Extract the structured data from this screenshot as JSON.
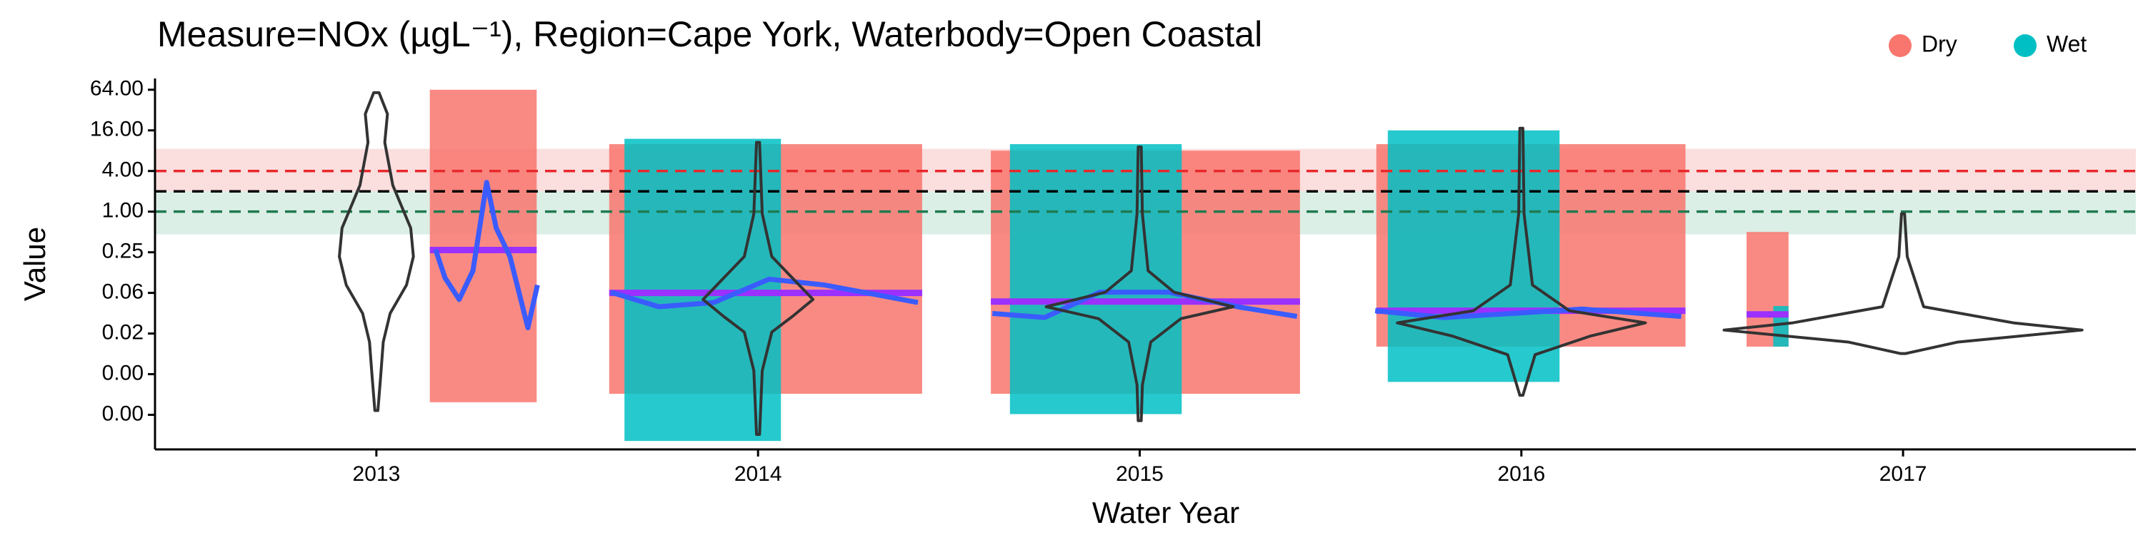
{
  "chart_data": {
    "type": "violin",
    "title": "Measure=NOx (µgL⁻¹), Region=Cape York, Waterbody=Open Coastal",
    "x_label": "Water Year",
    "y_label": "Value",
    "log_scale": true,
    "legend": "top-right",
    "xlim": [
      2012.42,
      2017.61
    ],
    "xticks": [
      2013,
      2014,
      2015,
      2016,
      2017
    ],
    "ylim": [
      0.0003,
      94
    ],
    "yticks": [
      {
        "value": 64,
        "label": "64.00"
      },
      {
        "value": 16,
        "label": "16.00"
      },
      {
        "value": 4,
        "label": "4.00"
      },
      {
        "value": 1,
        "label": "1.00"
      },
      {
        "value": 0.25,
        "label": "0.25"
      },
      {
        "value": 0.0625,
        "label": "0.06"
      },
      {
        "value": 0.015625,
        "label": "0.02"
      },
      {
        "value": 0.00390625,
        "label": "0.00"
      },
      {
        "value": 0.0009765625,
        "label": "0.00"
      }
    ],
    "bands": [
      {
        "low": 2,
        "high": 8.5,
        "color": "#f9d3d3"
      },
      {
        "low": 0.46,
        "high": 2,
        "color": "#cfe9dd"
      }
    ],
    "reference_lines": [
      {
        "value": 4,
        "color": "#e8282b"
      },
      {
        "value": 2,
        "color": "#000000"
      },
      {
        "value": 1,
        "color": "#1f7a4f"
      }
    ],
    "series": [
      {
        "name": "Dry",
        "color": "#f8766d",
        "clouds": [
          {
            "x": [
              2013.14,
              2013.42
            ],
            "low": 0.0015,
            "high": 64
          },
          {
            "x": [
              2013.61,
              2014.43
            ],
            "low": 0.002,
            "high": 10
          },
          {
            "x": [
              2014.61,
              2015.42
            ],
            "low": 0.002,
            "high": 8
          },
          {
            "x": [
              2015.62,
              2016.43
            ],
            "low": 0.01,
            "high": 10
          },
          {
            "x": [
              2016.59,
              2016.7
            ],
            "low": 0.01,
            "high": 0.5
          }
        ]
      },
      {
        "name": "Wet",
        "color": "#00bfc4",
        "clouds": [
          {
            "x": [
              2013.65,
              2014.06
            ],
            "low": 0.0004,
            "high": 12
          },
          {
            "x": [
              2014.66,
              2015.11
            ],
            "low": 0.001,
            "high": 10
          },
          {
            "x": [
              2015.65,
              2016.1
            ],
            "low": 0.003,
            "high": 16
          },
          {
            "x": [
              2016.66,
              2016.7
            ],
            "low": 0.01,
            "high": 0.04
          }
        ]
      }
    ],
    "means": {
      "color": "#9b30ff",
      "segments": [
        {
          "x": [
            2013.14,
            2013.42
          ],
          "value": 0.27
        },
        {
          "x": [
            2013.61,
            2014.43
          ],
          "value": 0.0625
        },
        {
          "x": [
            2014.61,
            2015.42
          ],
          "value": 0.0465
        },
        {
          "x": [
            2015.62,
            2016.43
          ],
          "value": 0.034
        },
        {
          "x": [
            2016.59,
            2016.7
          ],
          "value": 0.03
        }
      ]
    },
    "trends": {
      "color": "#3a5cff",
      "lines": [
        {
          "x": [
            2013.155,
            2013.18,
            2013.217,
            2013.253,
            2013.289,
            2013.314,
            2013.35,
            2013.397,
            2013.422
          ],
          "values": [
            0.275,
            0.104,
            0.05,
            0.133,
            2.71,
            0.57,
            0.216,
            0.019,
            0.082
          ]
        },
        {
          "x": [
            2013.614,
            2013.74,
            2013.884,
            2014.029,
            2014.173,
            2014.419
          ],
          "values": [
            0.064,
            0.039,
            0.045,
            0.1,
            0.082,
            0.045
          ]
        },
        {
          "x": [
            2014.614,
            2014.751,
            2014.895,
            2015.076,
            2015.256,
            2015.412
          ],
          "values": [
            0.031,
            0.027,
            0.064,
            0.064,
            0.039,
            0.028
          ]
        },
        {
          "x": [
            2015.617,
            2015.798,
            2015.978,
            2016.159,
            2016.419
          ],
          "values": [
            0.034,
            0.027,
            0.031,
            0.036,
            0.028
          ]
        }
      ]
    },
    "violins": [
      {
        "x": 2013,
        "values": [
          58,
          28,
          10.6,
          2.46,
          0.57,
          0.216,
          0.082,
          0.031,
          0.0117,
          0.0035,
          0.00113
        ],
        "density": [
          0.007,
          0.029,
          0.022,
          0.043,
          0.09,
          0.097,
          0.079,
          0.036,
          0.018,
          0.011,
          0.004
        ]
      },
      {
        "x": 2014,
        "values": [
          10.6,
          0.93,
          0.216,
          0.104,
          0.05,
          0.028,
          0.0164,
          0.0044,
          0.0005
        ],
        "density": [
          0.004,
          0.011,
          0.036,
          0.09,
          0.144,
          0.09,
          0.036,
          0.011,
          0.004
        ]
      },
      {
        "x": 2015,
        "values": [
          9.1,
          0.93,
          0.133,
          0.064,
          0.039,
          0.026,
          0.0117,
          0.0027,
          0.0008
        ],
        "density": [
          0.004,
          0.007,
          0.022,
          0.09,
          0.245,
          0.108,
          0.029,
          0.007,
          0.004
        ]
      },
      {
        "x": 2016,
        "values": [
          17.2,
          0.93,
          0.082,
          0.034,
          0.0225,
          0.0143,
          0.0076,
          0.0019
        ],
        "density": [
          0.004,
          0.007,
          0.029,
          0.126,
          0.325,
          0.18,
          0.036,
          0.004
        ]
      },
      {
        "x": 2017,
        "values": [
          0.93,
          0.216,
          0.039,
          0.0225,
          0.0176,
          0.0117,
          0.0079
        ],
        "density": [
          0.004,
          0.011,
          0.054,
          0.289,
          0.469,
          0.144,
          0.007
        ]
      }
    ]
  }
}
